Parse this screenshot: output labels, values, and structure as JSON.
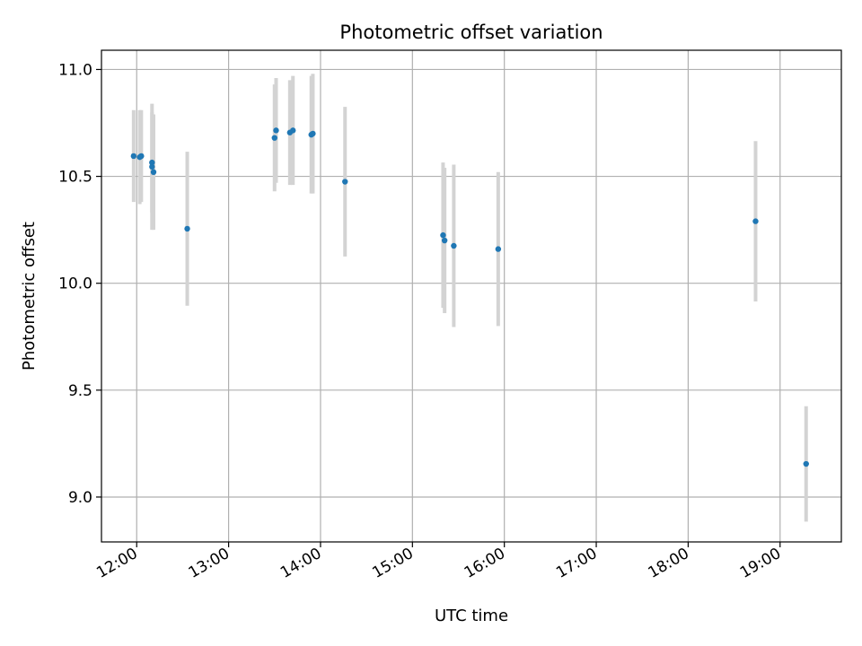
{
  "chart_data": {
    "type": "scatter",
    "title": "Photometric offset variation",
    "xlabel": "UTC time",
    "ylabel": "Photometric offset",
    "xlim": [
      "11:37",
      "19:40"
    ],
    "ylim": [
      8.79,
      11.09
    ],
    "x_ticks": [
      "12:00",
      "13:00",
      "14:00",
      "15:00",
      "16:00",
      "17:00",
      "18:00",
      "19:00"
    ],
    "y_ticks": [
      "9.0",
      "9.5",
      "10.0",
      "10.5",
      "11.0"
    ],
    "grid": true,
    "colors": {
      "point": "#1f77b4",
      "errorbar": "#d3d3d3",
      "grid": "#b0b0b0"
    },
    "points": [
      {
        "time": "11:58",
        "y": 10.595,
        "err": 0.215
      },
      {
        "time": "12:02",
        "y": 10.59,
        "err": 0.22
      },
      {
        "time": "12:03",
        "y": 10.595,
        "err": 0.215
      },
      {
        "time": "12:10",
        "y": 10.565,
        "err": 0.235
      },
      {
        "time": "12:10",
        "y": 10.545,
        "err": 0.295
      },
      {
        "time": "12:11",
        "y": 10.52,
        "err": 0.27
      },
      {
        "time": "12:33",
        "y": 10.255,
        "err": 0.36
      },
      {
        "time": "13:30",
        "y": 10.68,
        "err": 0.25
      },
      {
        "time": "13:31",
        "y": 10.715,
        "err": 0.245
      },
      {
        "time": "13:40",
        "y": 10.705,
        "err": 0.245
      },
      {
        "time": "13:42",
        "y": 10.715,
        "err": 0.255
      },
      {
        "time": "13:54",
        "y": 10.695,
        "err": 0.275
      },
      {
        "time": "13:55",
        "y": 10.7,
        "err": 0.28
      },
      {
        "time": "14:16",
        "y": 10.475,
        "err": 0.35
      },
      {
        "time": "15:20",
        "y": 10.225,
        "err": 0.34
      },
      {
        "time": "15:21",
        "y": 10.2,
        "err": 0.34
      },
      {
        "time": "15:27",
        "y": 10.175,
        "err": 0.38
      },
      {
        "time": "15:56",
        "y": 10.16,
        "err": 0.36
      },
      {
        "time": "18:44",
        "y": 10.29,
        "err": 0.375
      },
      {
        "time": "19:17",
        "y": 9.155,
        "err": 0.27
      }
    ]
  }
}
